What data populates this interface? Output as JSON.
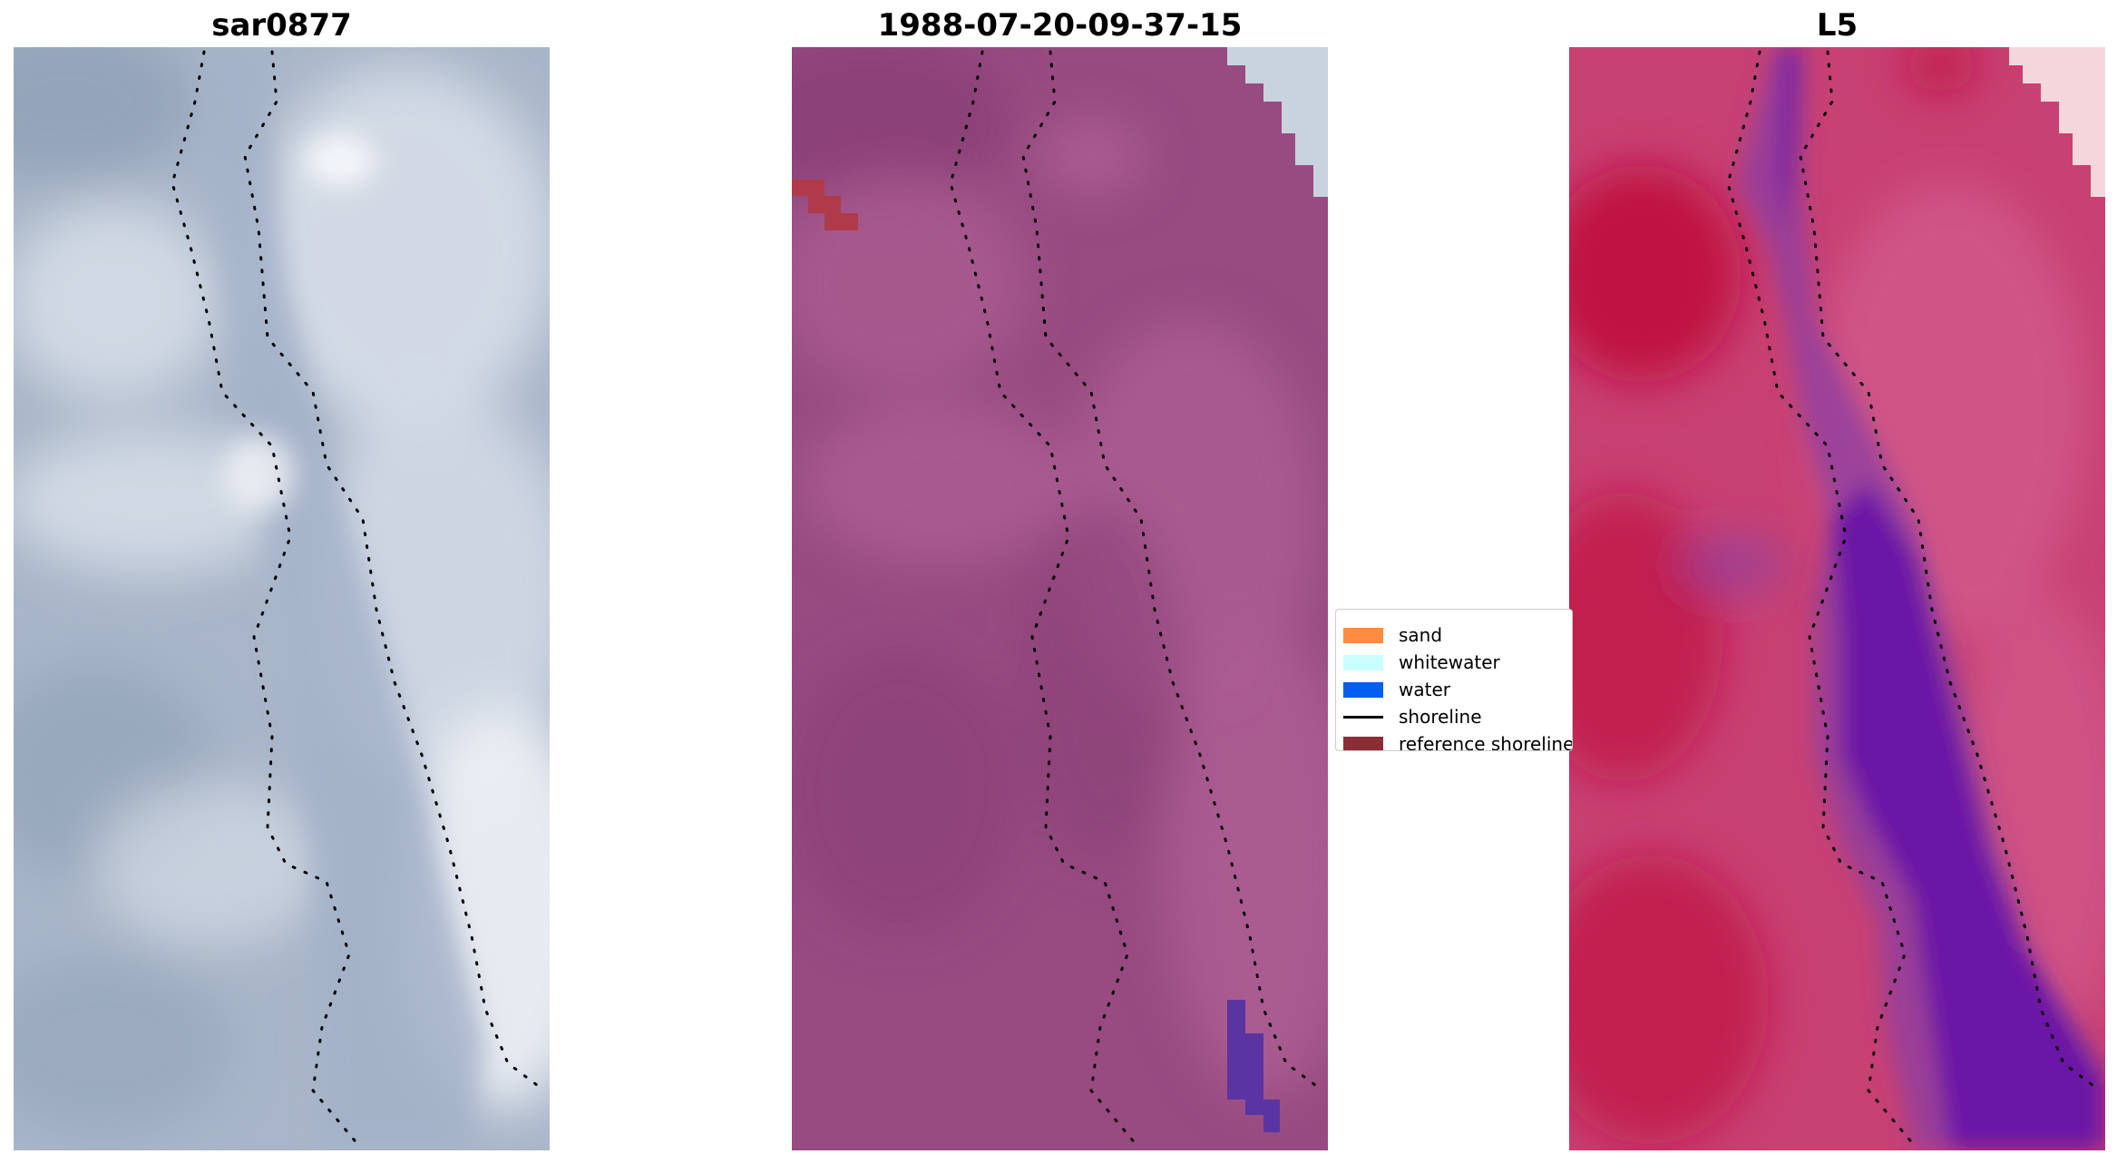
{
  "panels": [
    {
      "id": "rgb",
      "title": "sar0877",
      "colors": {
        "base": "#a9b6c9",
        "light": "#d4dbe6",
        "bright": "#f2f4f8",
        "dark": "#8b9db3",
        "channel": "#a3b2c8"
      }
    },
    {
      "id": "classified",
      "title": "1988-07-20-09-37-15",
      "colors": {
        "base": "#974b81",
        "light": "#ad5e93",
        "dark": "#8a3f76",
        "cloud": "#c8d3de",
        "reference": "#b03a4a",
        "water": "#5b34a4"
      }
    },
    {
      "id": "index",
      "title": "L5",
      "colors": {
        "base": "#c84173",
        "deep": "#bf0c3e",
        "pink": "#d35e8e",
        "light": "#f6d6dd",
        "purple": "#6a15a6",
        "channel": "#8e3fa0"
      }
    }
  ],
  "legend": {
    "items": [
      {
        "label": "sand",
        "kind": "patch",
        "color": "#ff8c3f"
      },
      {
        "label": "whitewater",
        "kind": "patch",
        "color": "#c9ffff"
      },
      {
        "label": "water",
        "kind": "patch",
        "color": "#005ef0"
      },
      {
        "label": "shoreline",
        "kind": "line",
        "color": "#000000"
      },
      {
        "label": "reference shoreline",
        "kind": "patch",
        "color": "#8b2e35"
      }
    ]
  }
}
